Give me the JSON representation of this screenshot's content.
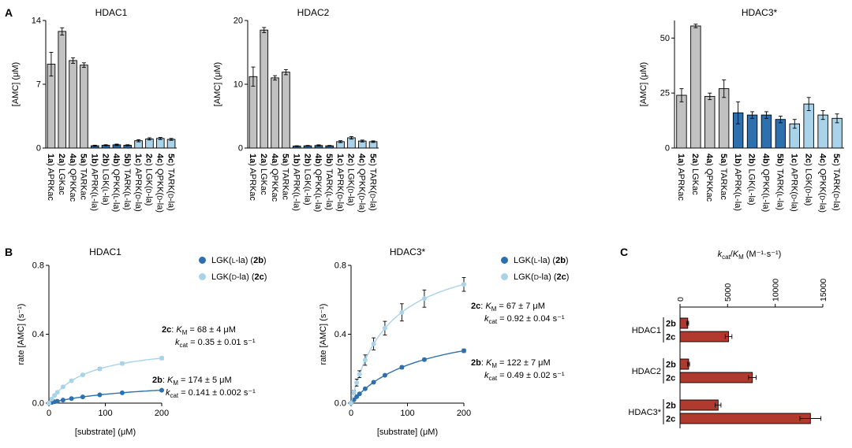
{
  "figure": {
    "background": "#ffffff"
  },
  "colors": {
    "gray": "#c1c1c1",
    "dark_blue": "#2e6fad",
    "light_blue": "#a9d3e9",
    "dark_red": "#b03a2e",
    "black": "#000000"
  },
  "panels": {
    "a_label": "A",
    "b_label": "B",
    "c_label": "C"
  },
  "chart_data": [
    {
      "id": "hdac1-bar",
      "type": "bar",
      "title": "HDAC1",
      "ylabel": "[AMC] (μM)",
      "ylim": [
        0,
        14
      ],
      "yticks": [
        0,
        7,
        14
      ],
      "categories": [
        "1a) APRKac",
        "2a) LGKac",
        "4a) QPKKac",
        "5a) TARKac",
        "1b) APRK(L-la)",
        "2b) LGK(L-la)",
        "4b) QPKK(L-la)",
        "5b) TARK(L-la)",
        "1c) APRK(D-la)",
        "2c) LGK(D-la)",
        "4c) QPKK(D-la)",
        "5c) TARK(D-la)"
      ],
      "values": [
        9.2,
        12.8,
        9.6,
        9.1,
        0.25,
        0.3,
        0.35,
        0.3,
        0.8,
        1.0,
        1.05,
        0.95
      ],
      "errors": [
        1.3,
        0.4,
        0.3,
        0.25,
        0.06,
        0.06,
        0.08,
        0.06,
        0.12,
        0.12,
        0.12,
        0.1
      ],
      "bar_color_keys": [
        "gray",
        "gray",
        "gray",
        "gray",
        "dark_blue",
        "dark_blue",
        "dark_blue",
        "dark_blue",
        "light_blue",
        "light_blue",
        "light_blue",
        "light_blue"
      ]
    },
    {
      "id": "hdac2-bar",
      "type": "bar",
      "title": "HDAC2",
      "ylabel": "[AMC] (μM)",
      "ylim": [
        0,
        20
      ],
      "yticks": [
        0,
        10,
        20
      ],
      "categories": [
        "1a) APRKac",
        "2a) LGKac",
        "4a) QPKKac",
        "5a) TARKac",
        "1b) APRK(L-la)",
        "2b) LGK(L-la)",
        "4b) QPKK(L-la)",
        "5b) TARK(L-la)",
        "1c) APRK(D-la)",
        "2c) LGK(D-la)",
        "4c) QPKK(D-la)",
        "5c) TARK(D-la)"
      ],
      "values": [
        11.2,
        18.5,
        11.0,
        11.9,
        0.3,
        0.35,
        0.4,
        0.35,
        1.0,
        1.6,
        1.1,
        1.0
      ],
      "errors": [
        1.5,
        0.4,
        0.35,
        0.4,
        0.06,
        0.06,
        0.1,
        0.06,
        0.15,
        0.2,
        0.15,
        0.12
      ],
      "bar_color_keys": [
        "gray",
        "gray",
        "gray",
        "gray",
        "dark_blue",
        "dark_blue",
        "dark_blue",
        "dark_blue",
        "light_blue",
        "light_blue",
        "light_blue",
        "light_blue"
      ]
    },
    {
      "id": "hdac3-bar",
      "type": "bar",
      "title": "HDAC3*",
      "ylabel": "[AMC] (μM)",
      "ylim": [
        0,
        58
      ],
      "yticks": [
        0,
        25,
        50
      ],
      "categories": [
        "1a) APRKac",
        "2a) LGKac",
        "4a) QPKKac",
        "5a) TARKac",
        "1b) APRK(L-la)",
        "2b) LGK(L-la)",
        "4b) QPKK(L-la)",
        "5b) TARK(L-la)",
        "1c) APRK(D-la)",
        "2c) LGK(D-la)",
        "4c) QPKK(D-la)",
        "5c) TARK(D-la)"
      ],
      "values": [
        24,
        55.5,
        23.5,
        27,
        16,
        15,
        15,
        13,
        11,
        20,
        15,
        13.5
      ],
      "errors": [
        3,
        0.8,
        1.5,
        4,
        5,
        1.5,
        1.5,
        1.5,
        2,
        3,
        2,
        2
      ],
      "bar_color_keys": [
        "gray",
        "gray",
        "gray",
        "gray",
        "dark_blue",
        "dark_blue",
        "dark_blue",
        "dark_blue",
        "light_blue",
        "light_blue",
        "light_blue",
        "light_blue"
      ]
    },
    {
      "id": "hdac1-mm",
      "type": "scatter",
      "title": "HDAC1",
      "xlabel": "[substrate] (μM)",
      "ylabel": "rate [AMC] (s⁻¹)",
      "xlim": [
        0,
        200
      ],
      "ylim": [
        0,
        0.8
      ],
      "xticks": [
        0,
        100,
        200
      ],
      "yticks": [
        0,
        0.4,
        0.8
      ],
      "ytick_labels": [
        "0.0",
        "0.4",
        "0.8"
      ],
      "series": [
        {
          "name": "LGK(L-la)",
          "compound": "2b",
          "color_key": "dark_blue",
          "fit": {
            "kcat": 0.141,
            "km": 174
          },
          "x": [
            0,
            5,
            10,
            15,
            25,
            40,
            60,
            90,
            130,
            200
          ],
          "y": [
            0,
            0.004,
            0.008,
            0.011,
            0.018,
            0.026,
            0.036,
            0.048,
            0.06,
            0.075
          ],
          "yerr": [
            0,
            0.002,
            0.002,
            0.002,
            0.002,
            0.003,
            0.003,
            0.003,
            0.004,
            0.004
          ]
        },
        {
          "name": "LGK(D-la)",
          "compound": "2c",
          "color_key": "light_blue",
          "fit": {
            "kcat": 0.35,
            "km": 68
          },
          "x": [
            0,
            5,
            10,
            15,
            25,
            40,
            60,
            90,
            130,
            200
          ],
          "y": [
            0,
            0.024,
            0.045,
            0.063,
            0.094,
            0.13,
            0.164,
            0.199,
            0.23,
            0.261
          ],
          "yerr": [
            0,
            0.004,
            0.005,
            0.005,
            0.006,
            0.006,
            0.007,
            0.008,
            0.008,
            0.008
          ]
        }
      ],
      "legend": [
        {
          "label": "LGK(L-la)",
          "compound": "2b",
          "color_key": "dark_blue"
        },
        {
          "label": "LGK(D-la)",
          "compound": "2c",
          "color_key": "light_blue"
        }
      ],
      "annotations": [
        {
          "line1": "2c: KM = 68 ± 4 μM",
          "line2": "kcat = 0.35 ± 0.01 s⁻¹"
        },
        {
          "line1": "2b: KM = 174 ± 5 μM",
          "line2": "kcat = 0.141 ± 0.002 s⁻¹"
        }
      ]
    },
    {
      "id": "hdac3-mm",
      "type": "scatter",
      "title": "HDAC3*",
      "xlabel": "[substrate] (μM)",
      "ylabel": "rate [AMC] (s⁻¹)",
      "xlim": [
        0,
        200
      ],
      "ylim": [
        0,
        0.8
      ],
      "xticks": [
        0,
        100,
        200
      ],
      "yticks": [
        0,
        0.4,
        0.8
      ],
      "ytick_labels": [
        "0.0",
        "0.4",
        "0.8"
      ],
      "series": [
        {
          "name": "LGK(L-la)",
          "compound": "2b",
          "color_key": "dark_blue",
          "fit": {
            "kcat": 0.49,
            "km": 122
          },
          "x": [
            0,
            5,
            10,
            15,
            25,
            40,
            60,
            90,
            130,
            200
          ],
          "y": [
            0,
            0.019,
            0.037,
            0.054,
            0.083,
            0.121,
            0.162,
            0.208,
            0.253,
            0.304
          ],
          "yerr": [
            0,
            0.003,
            0.004,
            0.004,
            0.005,
            0.006,
            0.006,
            0.008,
            0.008,
            0.01
          ]
        },
        {
          "name": "LGK(D-la)",
          "compound": "2c",
          "color_key": "light_blue",
          "fit": {
            "kcat": 0.92,
            "km": 67
          },
          "x": [
            0,
            5,
            10,
            15,
            25,
            40,
            60,
            90,
            130,
            200
          ],
          "y": [
            0,
            0.064,
            0.119,
            0.168,
            0.25,
            0.344,
            0.435,
            0.527,
            0.607,
            0.689
          ],
          "yerr": [
            0,
            0.01,
            0.02,
            0.02,
            0.03,
            0.035,
            0.04,
            0.05,
            0.05,
            0.04
          ]
        }
      ],
      "legend": [
        {
          "label": "LGK(L-la)",
          "compound": "2b",
          "color_key": "dark_blue"
        },
        {
          "label": "LGK(D-la)",
          "compound": "2c",
          "color_key": "light_blue"
        }
      ],
      "annotations": [
        {
          "line1": "2c: KM = 67 ± 7 μM",
          "line2": "kcat = 0.92 ± 0.04 s⁻¹"
        },
        {
          "line1": "2b: KM = 122 ± 7 μM",
          "line2": "kcat = 0.49 ± 0.02 s⁻¹"
        }
      ]
    },
    {
      "id": "kcat-km-bar",
      "type": "hbar",
      "title": "kcat/KM (M⁻¹·s⁻¹)",
      "xlim": [
        0,
        15000
      ],
      "xticks": [
        0,
        5000,
        10000,
        15000
      ],
      "bar_color_key": "dark_red",
      "groups": [
        {
          "label": "HDAC1",
          "rows": [
            {
              "compound": "2b",
              "value": 810,
              "error": 90
            },
            {
              "compound": "2c",
              "value": 5100,
              "error": 350
            }
          ]
        },
        {
          "label": "HDAC2",
          "rows": [
            {
              "compound": "2b",
              "value": 900,
              "error": 100
            },
            {
              "compound": "2c",
              "value": 7600,
              "error": 400
            }
          ]
        },
        {
          "label": "HDAC3*",
          "rows": [
            {
              "compound": "2b",
              "value": 4000,
              "error": 300
            },
            {
              "compound": "2c",
              "value": 13700,
              "error": 1100
            }
          ]
        }
      ]
    }
  ]
}
